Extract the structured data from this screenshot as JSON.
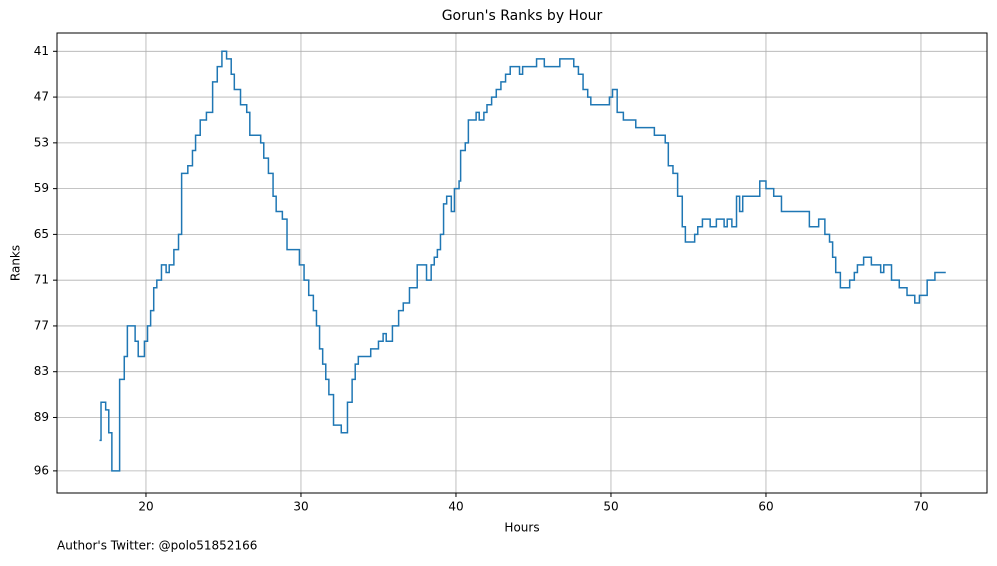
{
  "chart_data": {
    "type": "step",
    "title": "Gorun's Ranks by Hour",
    "x_label": "Hours",
    "y_label": "Ranks",
    "footnote": "Author's Twitter: @polo51852166",
    "xlim": [
      14.26,
      74.26
    ],
    "ylim": [
      98.9,
      38.6
    ],
    "xticks": [
      20,
      30,
      40,
      50,
      60,
      70
    ],
    "yticks": [
      41,
      47,
      53,
      59,
      65,
      71,
      77,
      83,
      89,
      96
    ],
    "grid": true,
    "color": "#1f77b4",
    "x": [
      17.0,
      17.1,
      17.4,
      17.6,
      17.8,
      18.3,
      18.6,
      18.8,
      19.3,
      19.5,
      19.9,
      20.1,
      20.3,
      20.5,
      20.7,
      21.0,
      21.3,
      21.5,
      21.8,
      22.1,
      22.3,
      22.7,
      23.0,
      23.2,
      23.5,
      23.9,
      24.3,
      24.6,
      24.9,
      25.2,
      25.5,
      25.7,
      26.1,
      26.5,
      26.7,
      27.4,
      27.6,
      27.9,
      28.2,
      28.4,
      28.8,
      29.1,
      29.9,
      30.2,
      30.5,
      30.8,
      31.0,
      31.2,
      31.4,
      31.6,
      31.8,
      32.1,
      32.6,
      33.0,
      33.3,
      33.5,
      33.7,
      34.5,
      35.0,
      35.3,
      35.5,
      35.9,
      36.3,
      36.6,
      37.0,
      37.5,
      38.1,
      38.4,
      38.6,
      38.8,
      39.0,
      39.2,
      39.4,
      39.7,
      39.9,
      40.2,
      40.3,
      40.6,
      40.8,
      41.3,
      41.5,
      41.8,
      42.0,
      42.3,
      42.6,
      42.9,
      43.2,
      43.5,
      44.1,
      44.3,
      45.2,
      45.7,
      46.7,
      47.6,
      47.9,
      48.2,
      48.5,
      48.7,
      49.9,
      50.1,
      50.4,
      50.8,
      51.6,
      52.8,
      53.5,
      53.7,
      54.0,
      54.3,
      54.6,
      54.8,
      55.4,
      55.6,
      55.9,
      56.4,
      56.8,
      57.3,
      57.5,
      57.8,
      58.1,
      58.3,
      58.5,
      59.6,
      60.0,
      60.5,
      61.0,
      62.8,
      63.4,
      63.8,
      64.1,
      64.3,
      64.5,
      64.8,
      65.4,
      65.7,
      65.9,
      66.3,
      66.8,
      67.4,
      67.6,
      68.1,
      68.6,
      69.1,
      69.6,
      69.9,
      70.4,
      70.9,
      71.6
    ],
    "values": [
      92,
      87,
      88,
      91,
      96,
      84,
      81,
      77,
      79,
      81,
      79,
      77,
      75,
      72,
      71,
      69,
      70,
      69,
      67,
      65,
      57,
      56,
      54,
      52,
      50,
      49,
      45,
      43,
      41,
      42,
      44,
      46,
      48,
      49,
      52,
      53,
      55,
      57,
      60,
      62,
      63,
      67,
      69,
      71,
      73,
      75,
      77,
      80,
      82,
      84,
      86,
      90,
      91,
      87,
      84,
      82,
      81,
      80,
      79,
      78,
      79,
      77,
      75,
      74,
      72,
      69,
      71,
      69,
      68,
      67,
      65,
      61,
      60,
      62,
      59,
      58,
      54,
      53,
      50,
      49,
      50,
      49,
      48,
      47,
      46,
      45,
      44,
      43,
      44,
      43,
      42,
      43,
      42,
      43,
      44,
      46,
      47,
      48,
      47,
      46,
      49,
      50,
      51,
      52,
      53,
      56,
      57,
      60,
      64,
      66,
      65,
      64,
      63,
      64,
      63,
      64,
      63,
      64,
      60,
      62,
      60,
      58,
      59,
      60,
      62,
      64,
      63,
      65,
      66,
      68,
      70,
      72,
      71,
      70,
      69,
      68,
      69,
      70,
      69,
      71,
      72,
      73,
      74,
      73,
      71,
      70,
      70
    ]
  }
}
